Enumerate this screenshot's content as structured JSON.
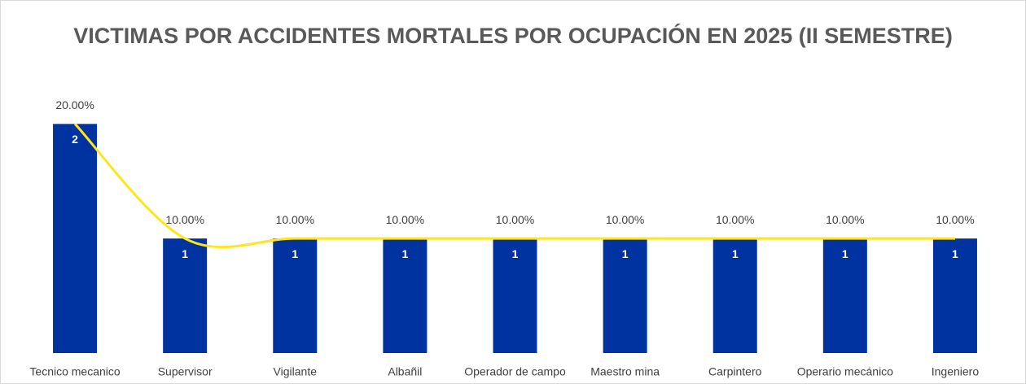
{
  "chart_data": {
    "type": "bar",
    "title": "VICTIMAS POR ACCIDENTES MORTALES POR OCUPACIÓN EN 2025 (II SEMESTRE)",
    "categories": [
      "Tecnico mecanico",
      "Supervisor",
      "Vigilante",
      "Albañil",
      "Operador de campo",
      "Maestro mina",
      "Carpintero",
      "Operario mecánico",
      "Ingeniero"
    ],
    "series": [
      {
        "type": "bar",
        "color": "#0033a0",
        "values": [
          2,
          1,
          1,
          1,
          1,
          1,
          1,
          1,
          1
        ]
      },
      {
        "type": "line",
        "color": "#ffe51f",
        "axis": "y2",
        "values": [
          20,
          10,
          10,
          10,
          10,
          10,
          10,
          10,
          10
        ],
        "value_labels": [
          "20.00%",
          "10.00%",
          "10.00%",
          "10.00%",
          "10.00%",
          "10.00%",
          "10.00%",
          "10.00%",
          "10.00%"
        ]
      }
    ],
    "ylim": [
      0,
      2.4
    ],
    "y2lim": [
      0,
      24
    ],
    "grid": false
  }
}
